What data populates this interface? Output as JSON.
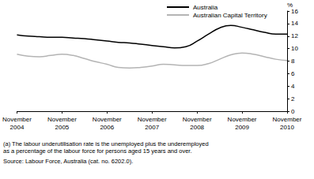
{
  "chart_data": {
    "type": "line",
    "y_label": "%",
    "categories": [
      "November\n2004",
      null,
      null,
      null,
      "November\n2005",
      null,
      null,
      null,
      "November\n2006",
      null,
      null,
      null,
      "November\n2007",
      null,
      null,
      null,
      "November\n2008",
      null,
      null,
      null,
      "November\n2009",
      null,
      null,
      null,
      "November\n2010"
    ],
    "series": [
      {
        "name": "Australia",
        "color": "#000000",
        "values": [
          12.2,
          12.0,
          11.9,
          11.8,
          11.8,
          11.7,
          11.6,
          11.4,
          11.2,
          11.0,
          10.9,
          10.7,
          10.5,
          10.3,
          10.1,
          10.3,
          11.2,
          12.3,
          13.3,
          13.7,
          13.4,
          13.0,
          12.6,
          12.3,
          12.3
        ]
      },
      {
        "name": "Australian Capital Territory",
        "color": "#b4b4b4",
        "values": [
          9.1,
          8.8,
          8.7,
          8.9,
          9.1,
          8.9,
          8.4,
          7.9,
          7.5,
          7.0,
          6.9,
          7.0,
          7.2,
          7.5,
          7.4,
          7.3,
          7.3,
          7.6,
          8.3,
          9.0,
          9.3,
          9.1,
          8.7,
          8.3,
          8.1
        ]
      }
    ],
    "ylim": [
      0,
      16
    ],
    "yticks": [
      0,
      2,
      4,
      6,
      8,
      10,
      12,
      14,
      16
    ],
    "grid": false,
    "legend": "top",
    "annotations": [
      "(a) The labour underutilisation rate is the unemployed plus the underemployed\nas a percentage of the labour force for persons aged 15 years and over.",
      "Source: Labour Force, Australia (cat. no. 6202.0)."
    ]
  }
}
